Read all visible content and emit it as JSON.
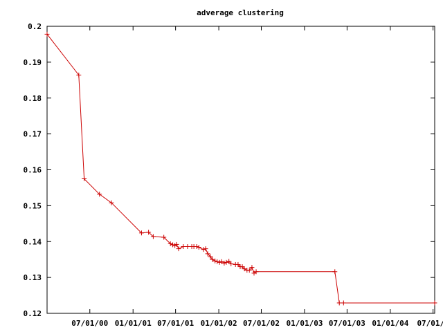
{
  "chart_data": {
    "type": "line",
    "title": "adverage clustering",
    "xlabel": "",
    "ylabel": "",
    "ylim": [
      0.12,
      0.2
    ],
    "xlim": [
      "2000-01-01",
      "2004-07-08"
    ],
    "grid": false,
    "legend": "none",
    "yticks": [
      {
        "value": 0.12,
        "label": "0.12"
      },
      {
        "value": 0.13,
        "label": "0.13"
      },
      {
        "value": 0.14,
        "label": "0.14"
      },
      {
        "value": 0.15,
        "label": "0.15"
      },
      {
        "value": 0.16,
        "label": "0.16"
      },
      {
        "value": 0.17,
        "label": "0.17"
      },
      {
        "value": 0.18,
        "label": "0.18"
      },
      {
        "value": 0.19,
        "label": "0.19"
      },
      {
        "value": 0.2,
        "label": "0.2"
      }
    ],
    "xticks": [
      {
        "value": "2000-07-01",
        "label": "07/01/00"
      },
      {
        "value": "2001-01-01",
        "label": "01/01/01"
      },
      {
        "value": "2001-07-01",
        "label": "07/01/01"
      },
      {
        "value": "2002-01-01",
        "label": "01/01/02"
      },
      {
        "value": "2002-07-01",
        "label": "07/01/02"
      },
      {
        "value": "2003-01-01",
        "label": "01/01/03"
      },
      {
        "value": "2003-07-01",
        "label": "07/01/03"
      },
      {
        "value": "2004-01-01",
        "label": "01/01/04"
      },
      {
        "value": "2004-07-01",
        "label": "07/01/0"
      }
    ],
    "color": "#cc0000",
    "series": [
      {
        "x": [
          "2000-01-01",
          "2000-05-15",
          "2000-06-07",
          "2000-08-11",
          "2000-10-01",
          "2001-02-06",
          "2001-03-08",
          "2001-03-28",
          "2001-05-12",
          "2001-06-09",
          "2001-06-19",
          "2001-06-28",
          "2001-07-05",
          "2001-07-14",
          "2001-08-03",
          "2001-08-21",
          "2001-09-08",
          "2001-09-17",
          "2001-09-29",
          "2001-10-08",
          "2001-10-28",
          "2001-11-06",
          "2001-11-15",
          "2001-11-26",
          "2001-12-05",
          "2001-12-16",
          "2001-12-25",
          "2002-01-04",
          "2002-01-13",
          "2002-01-24",
          "2002-02-02",
          "2002-02-13",
          "2002-02-22",
          "2002-03-13",
          "2002-03-24",
          "2002-04-02",
          "2002-04-11",
          "2002-04-20",
          "2002-05-01",
          "2002-05-11",
          "2002-05-22",
          "2002-05-31",
          "2002-06-09",
          "2003-05-10",
          "2003-05-29",
          "2003-06-16",
          "2004-07-08"
        ],
        "values": [
          0.1978,
          0.1864,
          0.1575,
          0.1532,
          0.1508,
          0.1424,
          0.1426,
          0.1414,
          0.1412,
          0.1394,
          0.1391,
          0.1389,
          0.1392,
          0.138,
          0.1386,
          0.1386,
          0.1386,
          0.1386,
          0.1386,
          0.1384,
          0.1378,
          0.138,
          0.1366,
          0.1358,
          0.135,
          0.1346,
          0.1344,
          0.1342,
          0.1344,
          0.134,
          0.1342,
          0.1345,
          0.1338,
          0.1336,
          0.1336,
          0.133,
          0.133,
          0.1324,
          0.132,
          0.132,
          0.1328,
          0.1312,
          0.1316,
          0.1316,
          0.1229,
          0.1229,
          0.1229
        ]
      }
    ]
  }
}
